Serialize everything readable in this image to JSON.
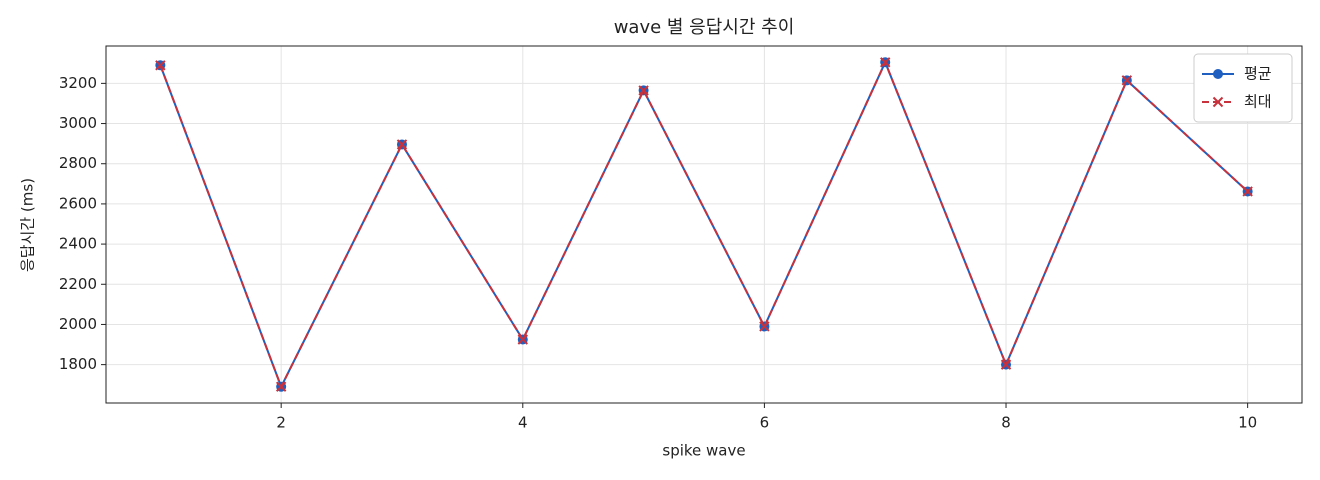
{
  "chart_data": {
    "type": "line",
    "title": "wave 별 응답시간 추이",
    "x_label": "spike wave",
    "y_label": "응답시간 (ms)",
    "x": [
      1,
      2,
      3,
      4,
      5,
      6,
      7,
      8,
      9,
      10
    ],
    "series": [
      {
        "name": "평균",
        "color": "#1f5fbf",
        "marker": "circle",
        "dash": false,
        "values": [
          3290,
          1690,
          2896,
          1925,
          3165,
          1990,
          3305,
          1800,
          3215,
          2662
        ]
      },
      {
        "name": "최대",
        "color": "#c8323c",
        "marker": "x",
        "dash": true,
        "values": [
          3290,
          1690,
          2896,
          1925,
          3165,
          1990,
          3305,
          1800,
          3215,
          2662
        ]
      }
    ],
    "xlim": [
      0.55,
      10.45
    ],
    "ylim": [
      1609,
      3386
    ],
    "xticks": [
      2,
      4,
      6,
      8,
      10
    ],
    "yticks": [
      1800,
      2000,
      2200,
      2400,
      2600,
      2800,
      3000,
      3200
    ],
    "grid": true,
    "legend": "upper right"
  }
}
